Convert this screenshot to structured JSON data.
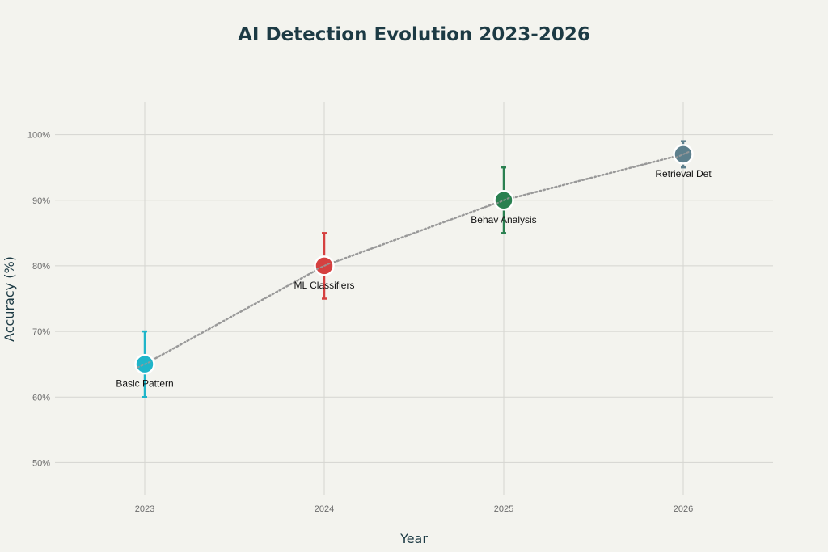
{
  "chart_data": {
    "type": "scatter",
    "title": "AI Detection Evolution 2023-2026",
    "xlabel": "Year",
    "ylabel": "Accuracy (%)",
    "x_ticks": [
      "2023",
      "2024",
      "2025",
      "2026"
    ],
    "y_ticks": [
      {
        "value": 50,
        "label": "50%"
      },
      {
        "value": 60,
        "label": "60%"
      },
      {
        "value": 70,
        "label": "70%"
      },
      {
        "value": 80,
        "label": "80%"
      },
      {
        "value": 90,
        "label": "90%"
      },
      {
        "value": 100,
        "label": "100%"
      }
    ],
    "xlim": [
      2022.5,
      2026.5
    ],
    "ylim": [
      45,
      105
    ],
    "grid": true,
    "trend_line": {
      "style": "dotted",
      "color": "#999999"
    },
    "points": [
      {
        "x": 2023,
        "y": 65,
        "err_low": 60,
        "err_high": 70,
        "label": "Basic Pattern",
        "color": "#1fb5c9"
      },
      {
        "x": 2024,
        "y": 80,
        "err_low": 75,
        "err_high": 85,
        "label": "ML Classifiers",
        "color": "#d5403f"
      },
      {
        "x": 2025,
        "y": 90,
        "err_low": 85,
        "err_high": 95,
        "label": "Behav Analysis",
        "color": "#2a8050"
      },
      {
        "x": 2026,
        "y": 97,
        "err_low": 95,
        "err_high": 99,
        "label": "Retrieval Det",
        "color": "#5c7f8c"
      }
    ]
  }
}
